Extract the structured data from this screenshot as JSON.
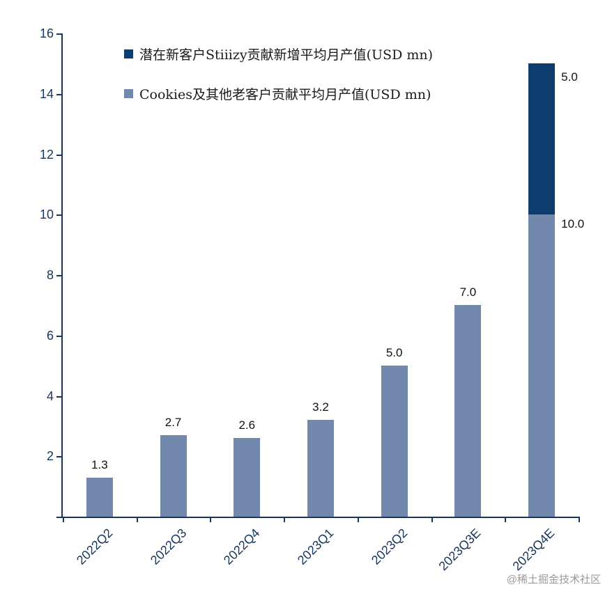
{
  "legend": {
    "items": [
      {
        "label": "潜在新客户Stiiizy贡献新增平均月产值(USD mn)",
        "color": "#0d3d6f"
      },
      {
        "label": "Cookies及其他老客户贡献平均月产值(USD mn)",
        "color": "#7289ad"
      }
    ]
  },
  "watermark": "@稀土掘金技术社区",
  "chart_data": {
    "type": "bar",
    "stacked": true,
    "title": "",
    "xlabel": "",
    "ylabel": "",
    "categories": [
      "2022Q2",
      "2022Q3",
      "2022Q4",
      "2023Q1",
      "2023Q2",
      "2023Q3E",
      "2023Q4E"
    ],
    "series": [
      {
        "name": "Cookies及其他老客户贡献平均月产值(USD mn)",
        "color": "#7289ad",
        "values": [
          1.3,
          2.7,
          2.6,
          3.2,
          5.0,
          7.0,
          10.0
        ]
      },
      {
        "name": "潜在新客户Stiiizy贡献新增平均月产值(USD mn)",
        "color": "#0d3d6f",
        "values": [
          0,
          0,
          0,
          0,
          0,
          0,
          5.0
        ]
      }
    ],
    "data_labels": [
      "1.3",
      "2.7",
      "2.6",
      "3.2",
      "5.0",
      "7.0",
      "10.0",
      "5.0"
    ],
    "ylim": [
      0,
      16
    ],
    "ytick_step": 2,
    "yticks": [
      2,
      4,
      6,
      8,
      10,
      12,
      14,
      16
    ],
    "legend_position": "top-left",
    "grid": false,
    "axis_color": "#17365d",
    "label_color": "#111111"
  }
}
